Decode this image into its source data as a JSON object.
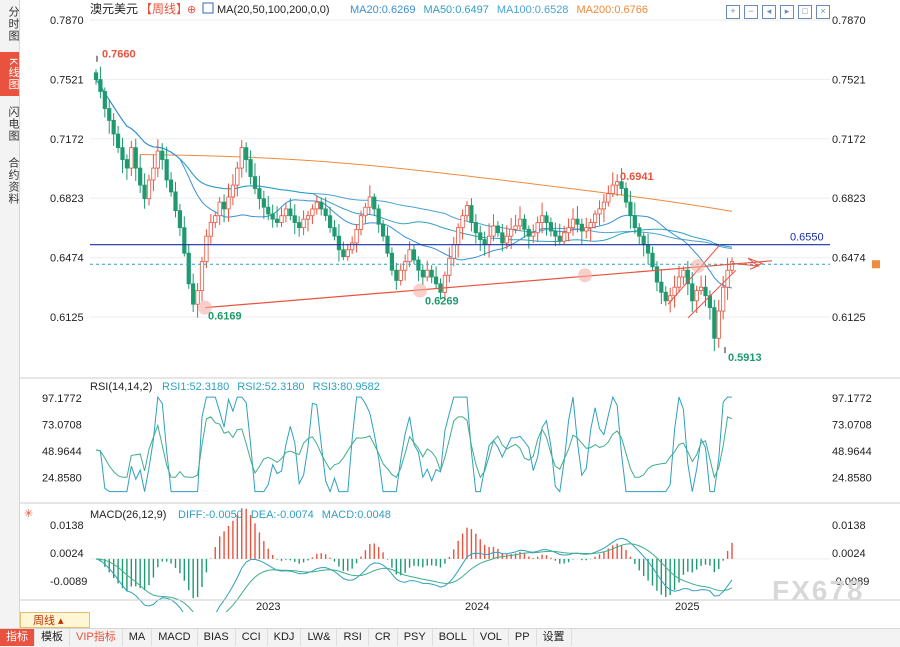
{
  "window": {
    "watermark": "FX678"
  },
  "leftbar": {
    "tabs": [
      "分时图",
      "K线图",
      "闪电图",
      "合约资料"
    ],
    "active": 1
  },
  "header": {
    "symbol": "澳元美元",
    "period_tag": "【周线】",
    "ma_label": "MA(20,50,100,200,0,0)",
    "ma_values": [
      {
        "text": "MA20:0.6269",
        "color": "#3a8fd8"
      },
      {
        "text": "MA50:0.6497",
        "color": "#2fa0c0"
      },
      {
        "text": "MA100:0.6528",
        "color": "#4aa3d6"
      },
      {
        "text": "MA200:0.6766",
        "color": "#f08a3c"
      }
    ]
  },
  "top_icons": [
    "plus-icon",
    "minus-icon",
    "left-icon",
    "right-icon",
    "fit-icon",
    "close-icon"
  ],
  "price_axis": {
    "ticks": [
      "0.7870",
      "0.7521",
      "0.7172",
      "0.6823",
      "0.6474",
      "0.6125"
    ]
  },
  "annotations": {
    "high_2022": "0.7660",
    "low_2022": "0.6169",
    "low_2023": "0.6269",
    "high_2024": "0.6941",
    "low_2025": "0.5913",
    "resistance": "0.6550"
  },
  "rsi": {
    "label": "RSI(14,14,2)",
    "values": [
      {
        "text": "RSI1:52.3180",
        "color": "#2fa0c0"
      },
      {
        "text": "RSI2:52.3180",
        "color": "#2fa0c0"
      },
      {
        "text": "RSI3:80.9582",
        "color": "#2fa0c0"
      }
    ],
    "ticks": [
      "97.1772",
      "73.0708",
      "48.9644",
      "24.8580"
    ]
  },
  "macd": {
    "label": "MACD(26,12,9)",
    "values": [
      {
        "text": "DIFF:-0.0050",
        "color": "#2fa0c0"
      },
      {
        "text": "DEA:-0.0074",
        "color": "#2fa0c0"
      },
      {
        "text": "MACD:0.0048",
        "color": "#2fa0c0"
      }
    ],
    "ticks": [
      "0.0138",
      "0.0024",
      "-0.0089"
    ]
  },
  "time_axis": {
    "labels": [
      "2023",
      "2024",
      "2025"
    ]
  },
  "bottom_bar": {
    "period_select": "周线",
    "items": [
      "指标",
      "模板",
      "VIP指标",
      "MA",
      "MACD",
      "BIAS",
      "CCI",
      "KDJ",
      "LW&",
      "RSI",
      "CR",
      "PSY",
      "BOLL",
      "VOL",
      "PP",
      "设置"
    ]
  },
  "colors": {
    "up": "#e8523e",
    "down": "#1f9a6e",
    "ma20": "#3a8fd8",
    "ma50": "#2fa0c0",
    "ma100": "#4aa3d6",
    "ma200": "#f08a3c",
    "resistance": "#1a2fa8",
    "trend": "#e8523e"
  },
  "chart_data": {
    "type": "candlestick",
    "y_range": [
      0.58,
      0.8
    ],
    "price_reference_levels": [
      0.655
    ],
    "key_points": [
      {
        "label": "0.7660",
        "value": 0.766
      },
      {
        "label": "0.6169",
        "value": 0.6169
      },
      {
        "label": "0.6269",
        "value": 0.6269
      },
      {
        "label": "0.6941",
        "value": 0.6941
      },
      {
        "label": "0.5913",
        "value": 0.5913
      }
    ],
    "close_path": [
      0.752,
      0.745,
      0.735,
      0.728,
      0.72,
      0.712,
      0.705,
      0.7,
      0.712,
      0.7,
      0.69,
      0.682,
      0.693,
      0.7,
      0.71,
      0.705,
      0.693,
      0.686,
      0.675,
      0.665,
      0.65,
      0.632,
      0.62,
      0.628,
      0.645,
      0.66,
      0.668,
      0.672,
      0.68,
      0.676,
      0.683,
      0.69,
      0.7,
      0.712,
      0.705,
      0.695,
      0.688,
      0.682,
      0.677,
      0.673,
      0.67,
      0.668,
      0.672,
      0.676,
      0.672,
      0.668,
      0.665,
      0.67,
      0.672,
      0.676,
      0.68,
      0.676,
      0.672,
      0.665,
      0.66,
      0.652,
      0.648,
      0.652,
      0.656,
      0.664,
      0.672,
      0.677,
      0.683,
      0.676,
      0.667,
      0.66,
      0.65,
      0.64,
      0.634,
      0.64,
      0.645,
      0.652,
      0.646,
      0.64,
      0.636,
      0.64,
      0.636,
      0.632,
      0.627,
      0.637,
      0.647,
      0.655,
      0.665,
      0.672,
      0.678,
      0.668,
      0.662,
      0.658,
      0.655,
      0.66,
      0.666,
      0.662,
      0.656,
      0.66,
      0.664,
      0.666,
      0.67,
      0.664,
      0.66,
      0.662,
      0.668,
      0.672,
      0.668,
      0.663,
      0.66,
      0.657,
      0.662,
      0.665,
      0.67,
      0.667,
      0.663,
      0.665,
      0.668,
      0.673,
      0.676,
      0.68,
      0.685,
      0.69,
      0.692,
      0.688,
      0.68,
      0.672,
      0.665,
      0.66,
      0.655,
      0.65,
      0.642,
      0.633,
      0.627,
      0.622,
      0.625,
      0.63,
      0.636,
      0.64,
      0.632,
      0.622,
      0.628,
      0.63,
      0.625,
      0.618,
      0.6,
      0.616,
      0.63,
      0.64,
      0.645
    ]
  }
}
